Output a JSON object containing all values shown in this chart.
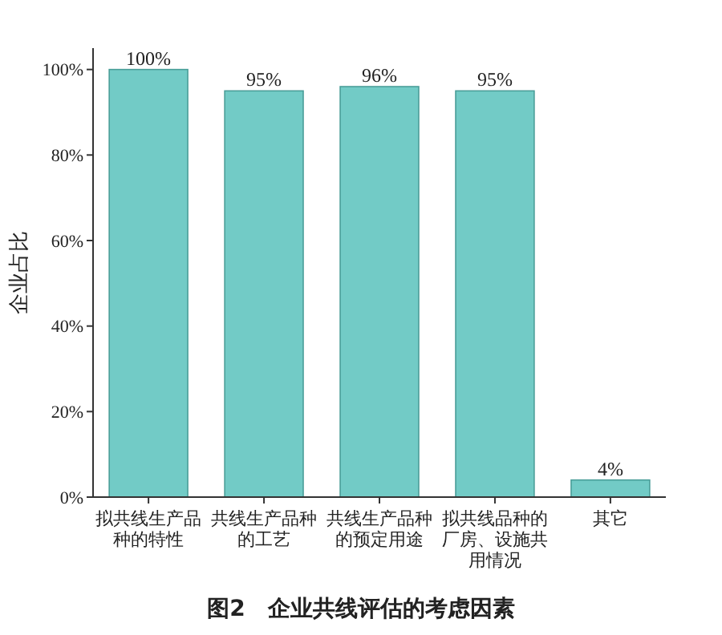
{
  "chart_data": {
    "type": "bar",
    "title": "图2　企业共线评估的考虑因素",
    "ylabel": "企业占比",
    "categories": [
      "拟共线生产品种的特性",
      "共线生产品种的工艺",
      "共线生产品种的预定用途",
      "拟共线品种的厂房、设施共用情况",
      "其它"
    ],
    "values": [
      100,
      95,
      96,
      95,
      4
    ],
    "value_labels": [
      "100%",
      "95%",
      "96%",
      "95%",
      "4%"
    ],
    "color": "#72cbc6",
    "ylim": [
      0,
      105
    ],
    "yticks": [
      {
        "value": 0,
        "label": "0%"
      },
      {
        "value": 20,
        "label": "20%"
      },
      {
        "value": 40,
        "label": "40%"
      },
      {
        "value": 60,
        "label": "60%"
      },
      {
        "value": 80,
        "label": "80%"
      },
      {
        "value": 100,
        "label": "100%"
      }
    ],
    "grid": false
  }
}
